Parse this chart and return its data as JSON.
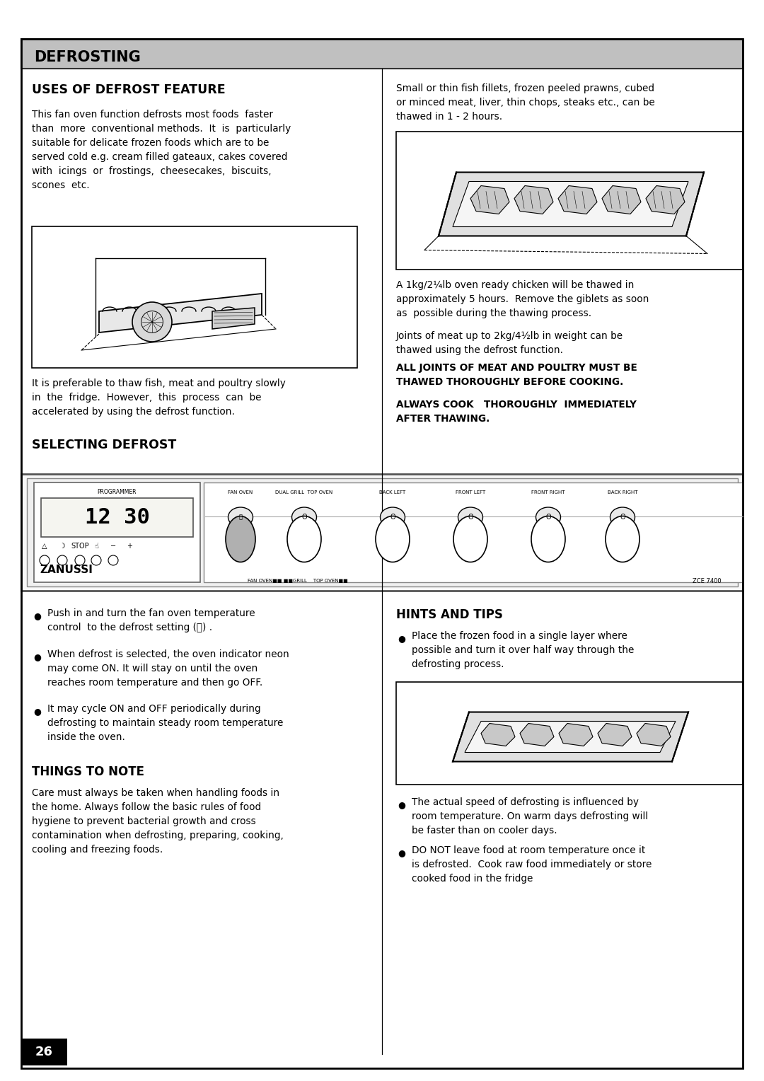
{
  "page_number": "26",
  "title": "DEFROSTING",
  "title_bg": "#c0c0c0",
  "bg_color": "#ffffff",
  "section1_heading": "USES OF DEFROST FEATURE",
  "section1_para": "This fan oven function defrosts most foods  faster\nthan  more  conventional methods.  It  is  particularly\nsuitable for delicate frozen foods which are to be\nserved cold e.g. cream filled gateaux, cakes covered\nwith  icings  or  frostings,  cheesecakes,  biscuits,\nscones  etc.",
  "section1_para2": "It is preferable to thaw fish, meat and poultry slowly\nin  the  fridge.  However,  this  process  can  be\naccelerated by using the defrost function.",
  "section2_heading": "SELECTING DEFROST",
  "bullet1": "Push in and turn the fan oven temperature\ncontrol  to the defrost setting (⎙) .",
  "bullet2": "When defrost is selected, the oven indicator neon\nmay come ON. It will stay on until the oven\nreaches room temperature and then go OFF.",
  "bullet3": "It may cycle ON and OFF periodically during\ndefrosting to maintain steady room temperature\ninside the oven.",
  "things_heading": "THINGS TO NOTE",
  "things_para": "Care must always be taken when handling foods in\nthe home. Always follow the basic rules of food\nhygiene to prevent bacterial growth and cross\ncontamination when defrosting, preparing, cooking,\ncooling and freezing foods.",
  "right_para1": "Small or thin fish fillets, frozen peeled prawns, cubed\nor minced meat, liver, thin chops, steaks etc., can be\nthawed in 1 - 2 hours.",
  "right_para2": "A 1kg/2¼lb oven ready chicken will be thawed in\napproximately 5 hours.  Remove the giblets as soon\nas  possible during the thawing process.",
  "right_para3": "Joints of meat up to 2kg/4½lb in weight can be\nthawed using the defrost function.",
  "right_bold1": "ALL JOINTS OF MEAT AND POULTRY MUST BE\nTHAWED THOROUGHLY BEFORE COOKING.",
  "right_bold2": "ALWAYS COOK   THOROUGHLY  IMMEDIATELY\nAFTER THAWING.",
  "hints_heading": "HINTS AND TIPS",
  "hints_bullet1": "Place the frozen food in a single layer where\npossible and turn it over half way through the\ndefrosting process.",
  "hints_bullet2": "The actual speed of defrosting is influenced by\nroom temperature. On warm days defrosting will\nbe faster than on cooler days.",
  "hints_bullet3": "DO NOT leave food at room temperature once it\nis defrosted.  Cook raw food immediately or store\ncooked food in the fridge"
}
